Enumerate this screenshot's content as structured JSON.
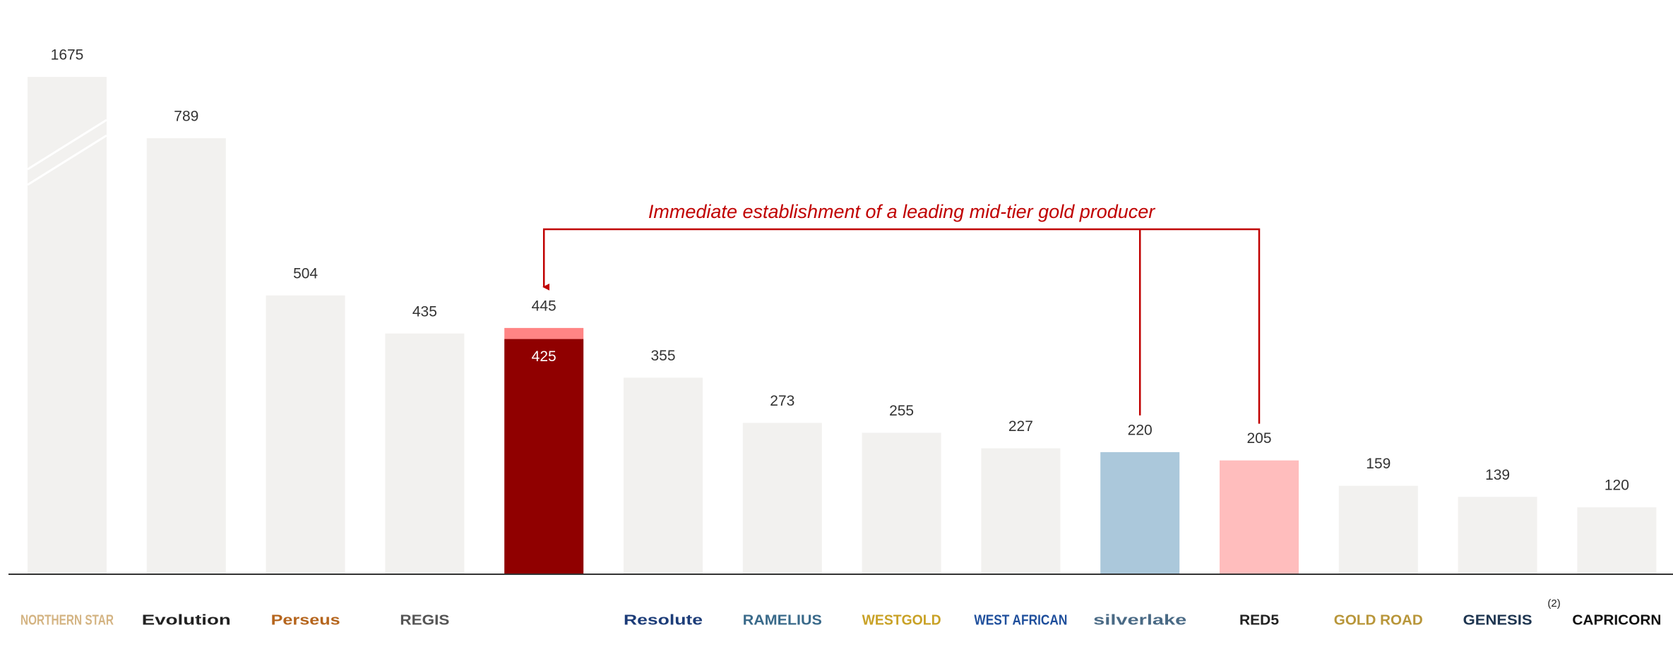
{
  "chart_data": {
    "type": "bar",
    "annotation": "Immediate establishment of a leading mid-tier gold producer",
    "categories": [
      "NORTHERN STAR",
      "Evolution",
      "Perseus",
      "REGIS",
      null,
      "Resolute",
      "RAMELIUS",
      "WESTGOLD",
      "WEST AFRICAN",
      "silverlake",
      "RED5",
      "GOLD ROAD",
      "GENESIS",
      "CAPRICORN"
    ],
    "notes": [
      null,
      null,
      null,
      null,
      null,
      null,
      null,
      null,
      null,
      null,
      null,
      null,
      "(2)",
      null
    ],
    "values": [
      1675,
      789,
      504,
      435,
      445,
      355,
      273,
      255,
      227,
      220,
      205,
      159,
      139,
      120
    ],
    "colors": [
      "#f2f1ef",
      "#f2f1ef",
      "#f2f1ef",
      "#f2f1ef",
      "#f2f1ef",
      "#f2f1ef",
      "#f2f1ef",
      "#f2f1ef",
      "#f2f1ef",
      "#abc8db",
      "#ffbdbd",
      "#f2f1ef",
      "#f2f1ef",
      "#f2f1ef"
    ],
    "segments": [
      425,
      20
    ],
    "segment_colors": [
      "#900000",
      "#ff8585"
    ],
    "ylim": [
      0,
      900
    ],
    "axis_break": true,
    "grid": false
  }
}
